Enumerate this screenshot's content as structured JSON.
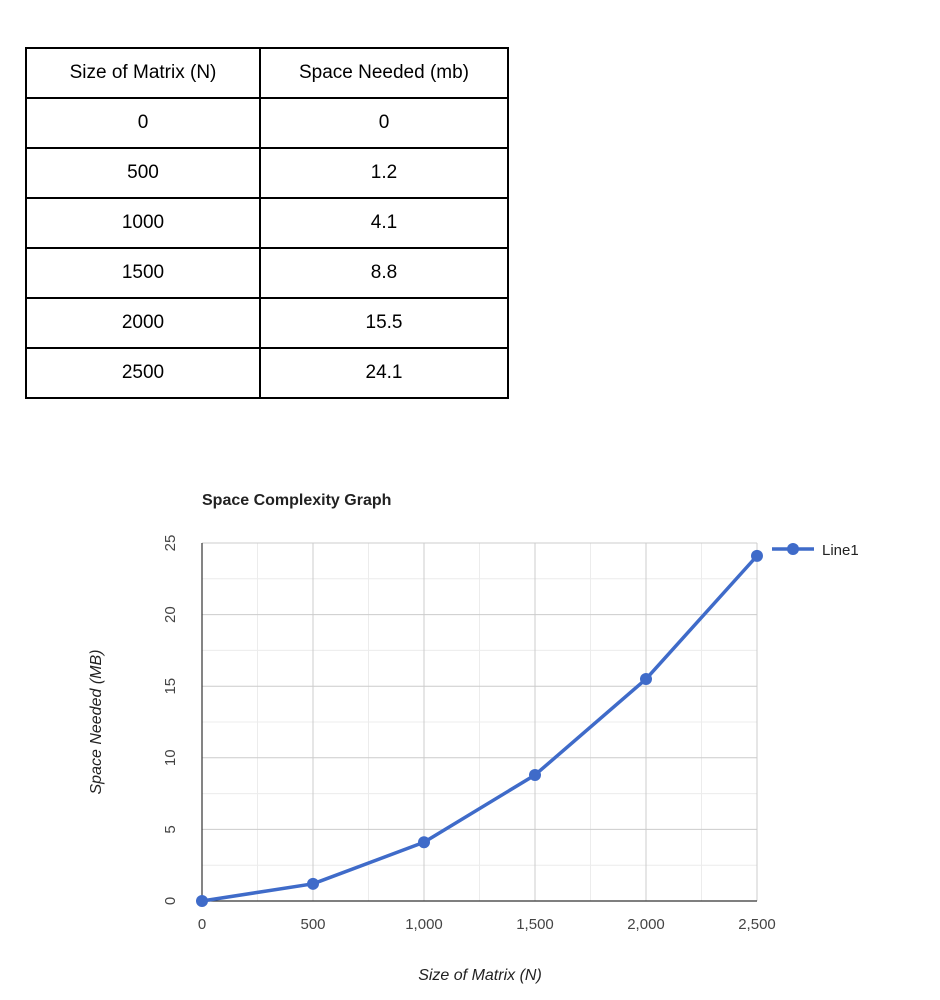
{
  "table": {
    "headers": [
      "Size of Matrix (N)",
      "Space Needed (mb)"
    ],
    "rows": [
      [
        "0",
        "0"
      ],
      [
        "500",
        "1.2"
      ],
      [
        "1000",
        "4.1"
      ],
      [
        "1500",
        "8.8"
      ],
      [
        "2000",
        "15.5"
      ],
      [
        "2500",
        "24.1"
      ]
    ]
  },
  "chart_data": {
    "type": "line",
    "title": "Space Complexity Graph",
    "xlabel": "Size of Matrix (N)",
    "ylabel": "Space Needed (MB)",
    "x": [
      0,
      500,
      1000,
      1500,
      2000,
      2500
    ],
    "series": [
      {
        "name": "Line1",
        "values": [
          0,
          1.2,
          4.1,
          8.8,
          15.5,
          24.1
        ],
        "color": "#3f6bc9"
      }
    ],
    "xlim": [
      0,
      2500
    ],
    "ylim": [
      0,
      25
    ],
    "x_ticks": [
      0,
      500,
      1000,
      1500,
      2000,
      2500
    ],
    "x_tick_labels": [
      "0",
      "500",
      "1,000",
      "1,500",
      "2,000",
      "2,500"
    ],
    "y_ticks": [
      0,
      5,
      10,
      15,
      20,
      25
    ],
    "y_tick_labels": [
      "0",
      "5",
      "10",
      "15",
      "20",
      "25"
    ],
    "grid": true,
    "legend": "right"
  }
}
